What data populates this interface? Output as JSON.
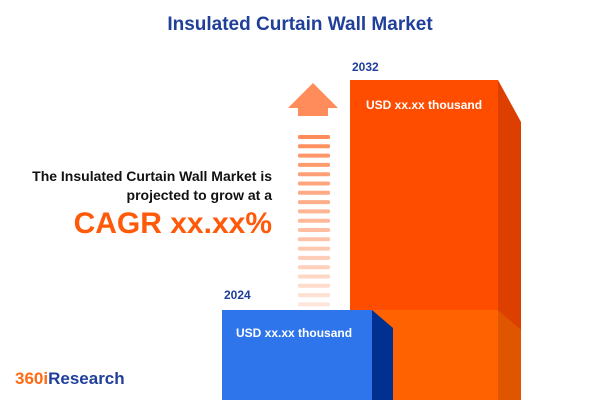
{
  "title": "Insulated Curtain Wall Market",
  "description": "The Insulated  Curtain Wall Market is projected to grow at a",
  "cagr_label": "CAGR xx.xx%",
  "logo": {
    "part1": "360i",
    "part2": "Research"
  },
  "colors": {
    "bar_2024": "#2e75ec",
    "bar_2032": "#ff4d00",
    "title": "#1f3f9a",
    "cagr": "#ff5a0a"
  },
  "chart_data": {
    "type": "bar",
    "categories": [
      "2024",
      "2032"
    ],
    "value_labels": [
      "USD xx.xx thousand",
      "USD xx.xx thousand"
    ],
    "title": "Insulated Curtain Wall Market"
  }
}
